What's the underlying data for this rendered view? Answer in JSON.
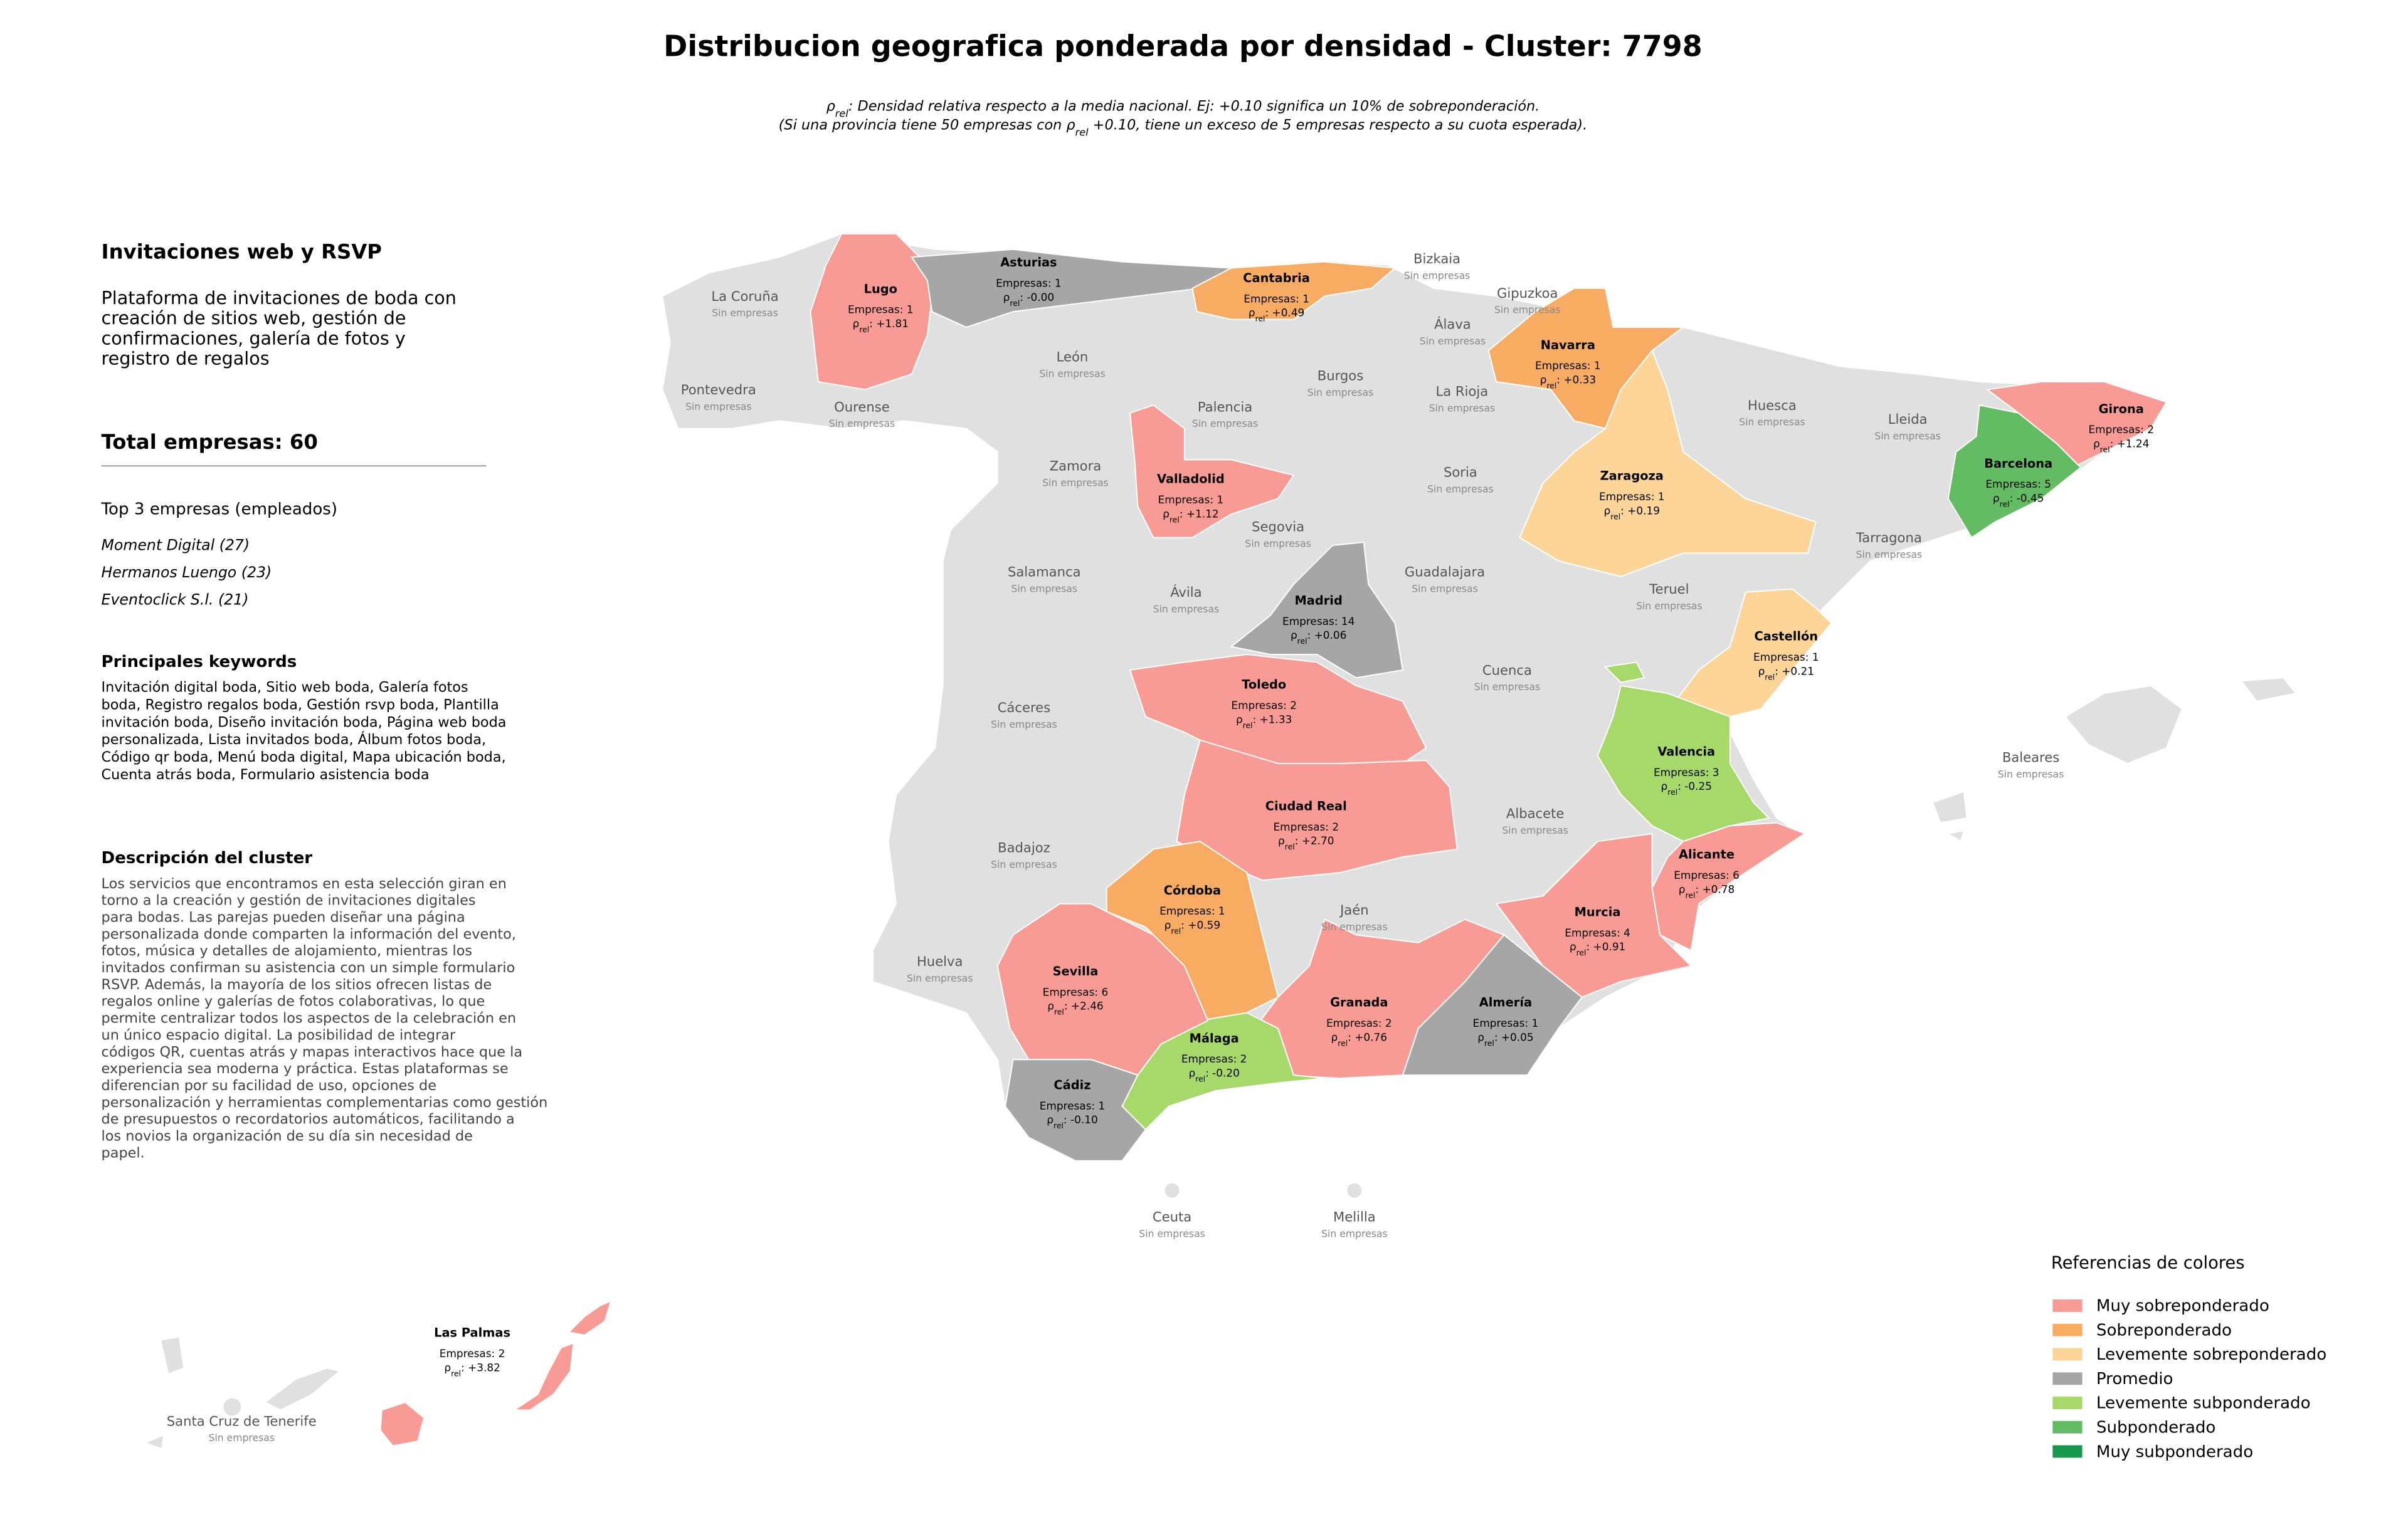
{
  "title": "Distribucion geografica ponderada por densidad - Cluster: 7798",
  "subtitle": [
    [
      "ρ",
      "rel",
      ": Densidad relativa respecto a la media nacional. Ej: +0.10 significa un 10% de sobreponderación."
    ],
    [
      "(Si una provincia tiene 50 empresas con ρ",
      "rel",
      " +0.10, tiene un exceso de 5 empresas respecto a su cuota esperada)."
    ]
  ],
  "rho_label": {
    "symbol": "ρ",
    "sub": "rel",
    "sep": ": "
  },
  "sidebar": {
    "title": "Invitaciones web y RSVP",
    "summary": [
      "Plataforma de invitaciones de boda con",
      "creación de sitios web, gestión de",
      "confirmaciones, galería de fotos y",
      "registro de regalos"
    ],
    "total": "Total empresas: 60",
    "top_heading": "Top 3 empresas (empleados)",
    "top": [
      "Moment Digital (27)",
      "Hermanos Luengo (23)",
      "Eventoclick S.l. (21)"
    ],
    "keywords_heading": "Principales keywords",
    "keywords": [
      "Invitación digital boda, Sitio web boda, Galería fotos",
      "boda, Registro regalos boda, Gestión rsvp boda, Plantilla",
      "invitación boda, Diseño invitación boda, Página web boda",
      "personalizada, Lista invitados boda, Álbum fotos boda,",
      "Código qr boda, Menú boda digital, Mapa ubicación boda,",
      "Cuenta atrás boda, Formulario asistencia boda"
    ],
    "description_heading": "Descripción del cluster",
    "description": [
      "Los servicios que encontramos en esta selección giran en",
      "torno a la creación y gestión de invitaciones digitales",
      "para bodas. Las parejas pueden diseñar una página",
      "personalizada donde comparten la información del evento,",
      "fotos, música y detalles de alojamiento, mientras los",
      "invitados confirman su asistencia con un simple formulario",
      "RSVP. Además, la mayoría de los sitios ofrecen listas de",
      "regalos online y galerías de fotos colaborativas, lo que",
      "permite centralizar todos los aspectos de la celebración en",
      "un único espacio digital. La posibilidad de integrar",
      "códigos QR, cuentas atrás y mapas interactivos hace que la",
      "experiencia sea moderna y práctica. Estas plataformas se",
      "diferencian por su facilidad de uso, opciones de",
      "personalización y herramientas complementarias como gestión",
      "de presupuestos o recordatorios automáticos, facilitando a",
      "los novios la organización de su día sin necesidad de",
      "papel."
    ]
  },
  "provinces": [
    {
      "name": "Lugo",
      "count": "Empresas: 1",
      "rho": "+1.81",
      "color": "#f99b95"
    },
    {
      "name": "Asturias",
      "count": "Empresas: 1",
      "rho": "-0.00",
      "color": "#a6a6a6"
    },
    {
      "name": "Cantabria",
      "count": "Empresas: 1",
      "rho": "+0.49",
      "color": "#f8ac63"
    },
    {
      "name": "Navarra",
      "count": "Empresas: 1",
      "rho": "+0.33",
      "color": "#f8ac63"
    },
    {
      "name": "Zaragoza",
      "count": "Empresas: 1",
      "rho": "+0.19",
      "color": "#fdd598"
    },
    {
      "name": "Girona",
      "count": "Empresas: 2",
      "rho": "+1.24",
      "color": "#f99b95"
    },
    {
      "name": "Barcelona",
      "count": "Empresas: 5",
      "rho": "-0.45",
      "color": "#63bb63"
    },
    {
      "name": "Valladolid",
      "count": "Empresas: 1",
      "rho": "+1.12",
      "color": "#f99b95"
    },
    {
      "name": "Madrid",
      "count": "Empresas: 14",
      "rho": "+0.06",
      "color": "#a6a6a6"
    },
    {
      "name": "Castellón",
      "count": "Empresas: 1",
      "rho": "+0.21",
      "color": "#fdd598"
    },
    {
      "name": "Valencia",
      "count": "Empresas: 3",
      "rho": "-0.25",
      "color": "#a6d96a"
    },
    {
      "name": "Toledo",
      "count": "Empresas: 2",
      "rho": "+1.33",
      "color": "#f99b95"
    },
    {
      "name": "Ciudad Real",
      "count": "Empresas: 2",
      "rho": "+2.70",
      "color": "#f99b95"
    },
    {
      "name": "Alicante",
      "count": "Empresas: 6",
      "rho": "+0.78",
      "color": "#f99b95"
    },
    {
      "name": "Murcia",
      "count": "Empresas: 4",
      "rho": "+0.91",
      "color": "#f99b95"
    },
    {
      "name": "Almería",
      "count": "Empresas: 1",
      "rho": "+0.05",
      "color": "#a6a6a6"
    },
    {
      "name": "Granada",
      "count": "Empresas: 2",
      "rho": "+0.76",
      "color": "#f99b95"
    },
    {
      "name": "Córdoba",
      "count": "Empresas: 1",
      "rho": "+0.59",
      "color": "#f8ac63"
    },
    {
      "name": "Málaga",
      "count": "Empresas: 2",
      "rho": "-0.20",
      "color": "#a6d96a"
    },
    {
      "name": "Sevilla",
      "count": "Empresas: 6",
      "rho": "+2.46",
      "color": "#f99b95"
    },
    {
      "name": "Cádiz",
      "count": "Empresas: 1",
      "rho": "-0.10",
      "color": "#a6a6a6"
    },
    {
      "name": "Las Palmas",
      "count": "Empresas: 2",
      "rho": "+3.82",
      "color": "#f99b95"
    },
    {
      "name": "La Coruña",
      "status": "Sin empresas"
    },
    {
      "name": "Pontevedra",
      "status": "Sin empresas"
    },
    {
      "name": "Ourense",
      "status": "Sin empresas"
    },
    {
      "name": "León",
      "status": "Sin empresas"
    },
    {
      "name": "Palencia",
      "status": "Sin empresas"
    },
    {
      "name": "Burgos",
      "status": "Sin empresas"
    },
    {
      "name": "Bizkaia",
      "status": "Sin empresas"
    },
    {
      "name": "Gipuzkoa",
      "status": "Sin empresas"
    },
    {
      "name": "Álava",
      "status": "Sin empresas"
    },
    {
      "name": "La Rioja",
      "status": "Sin empresas"
    },
    {
      "name": "Huesca",
      "status": "Sin empresas"
    },
    {
      "name": "Lleida",
      "status": "Sin empresas"
    },
    {
      "name": "Zamora",
      "status": "Sin empresas"
    },
    {
      "name": "Soria",
      "status": "Sin empresas"
    },
    {
      "name": "Segovia",
      "status": "Sin empresas"
    },
    {
      "name": "Tarragona",
      "status": "Sin empresas"
    },
    {
      "name": "Salamanca",
      "status": "Sin empresas"
    },
    {
      "name": "Ávila",
      "status": "Sin empresas"
    },
    {
      "name": "Guadalajara",
      "status": "Sin empresas"
    },
    {
      "name": "Teruel",
      "status": "Sin empresas"
    },
    {
      "name": "Cáceres",
      "status": "Sin empresas"
    },
    {
      "name": "Cuenca",
      "status": "Sin empresas"
    },
    {
      "name": "Albacete",
      "status": "Sin empresas"
    },
    {
      "name": "Badajoz",
      "status": "Sin empresas"
    },
    {
      "name": "Jaén",
      "status": "Sin empresas"
    },
    {
      "name": "Huelva",
      "status": "Sin empresas"
    },
    {
      "name": "Baleares",
      "status": "Sin empresas"
    },
    {
      "name": "Ceuta",
      "status": "Sin empresas"
    },
    {
      "name": "Melilla",
      "status": "Sin empresas"
    },
    {
      "name": "Santa Cruz de Tenerife",
      "status": "Sin empresas"
    }
  ],
  "legend": {
    "title": "Referencias de colores",
    "items": [
      {
        "label": "Muy sobreponderado",
        "color": "#f99b95"
      },
      {
        "label": "Sobreponderado",
        "color": "#f8ac63"
      },
      {
        "label": "Levemente sobreponderado",
        "color": "#fdd598"
      },
      {
        "label": "Promedio",
        "color": "#a6a6a6"
      },
      {
        "label": "Levemente subponderado",
        "color": "#a6d96a"
      },
      {
        "label": "Subponderado",
        "color": "#63bb63"
      },
      {
        "label": "Muy subponderado",
        "color": "#1a9850"
      }
    ]
  }
}
